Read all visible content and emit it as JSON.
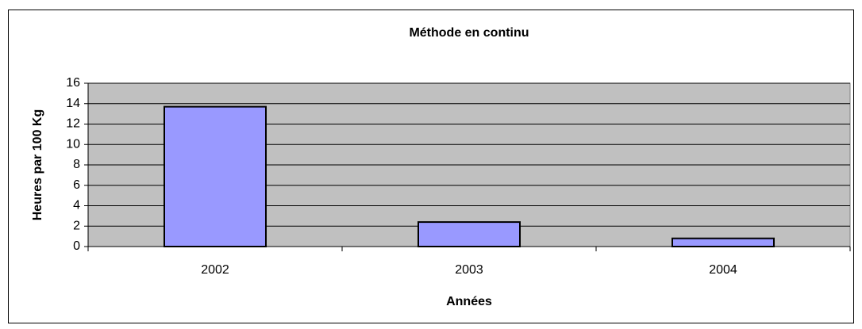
{
  "chart_data": {
    "type": "bar",
    "title": "Méthode en continu",
    "x_label": "Années",
    "y_label": "Heures par 100 Kg",
    "categories": [
      "2002",
      "2003",
      "2004"
    ],
    "values": [
      13.7,
      2.4,
      0.8
    ],
    "color": "#9999ff",
    "ylim": [
      0,
      16
    ],
    "yticks": [
      0,
      2,
      4,
      6,
      8,
      10,
      12,
      14,
      16
    ],
    "grid": true
  }
}
